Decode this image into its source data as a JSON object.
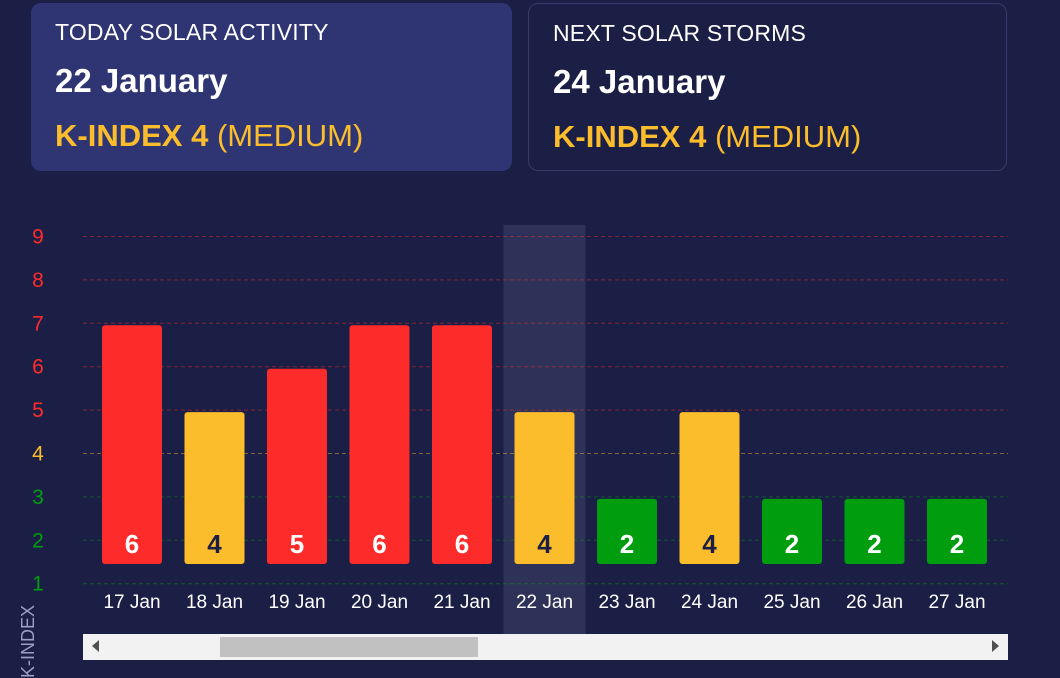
{
  "today": {
    "label": "TODAY SOLAR ACTIVITY",
    "date": "22 January",
    "k_prefix": "K-INDEX 4",
    "k_level": "(MEDIUM)"
  },
  "next": {
    "label": "NEXT SOLAR STORMS",
    "date": "24 January",
    "k_prefix": "K-INDEX 4",
    "k_level": "(MEDIUM)"
  },
  "colors": {
    "background": "#1c1f45",
    "card_active": "#2f3573",
    "high": "#fe2b2b",
    "medium": "#fbbd2c",
    "low": "#009e0f",
    "highlight": "#2e3258"
  },
  "chart_data": {
    "type": "bar",
    "categories": [
      "17 Jan",
      "18 Jan",
      "19 Jan",
      "20 Jan",
      "21 Jan",
      "22 Jan",
      "23 Jan",
      "24 Jan",
      "25 Jan",
      "26 Jan",
      "27 Jan"
    ],
    "values": [
      6,
      4,
      5,
      6,
      6,
      4,
      2,
      4,
      2,
      2,
      2
    ],
    "value_labels": [
      "6",
      "4",
      "5",
      "6",
      "6",
      "4",
      "2",
      "4",
      "2",
      "2",
      "2"
    ],
    "highlighted_category": "22 Jan",
    "ylabel": "K-INDEX",
    "ylim": [
      1,
      9
    ],
    "yticks": [
      "1",
      "2",
      "3",
      "4",
      "5",
      "6",
      "7",
      "8",
      "9"
    ],
    "grid": true,
    "tick_colors": {
      "1": "#009e0f",
      "2": "#009e0f",
      "3": "#009e0f",
      "4": "#fbbd2c",
      "5": "#fe2b2b",
      "6": "#fe2b2b",
      "7": "#fe2b2b",
      "8": "#fe2b2b",
      "9": "#fe2b2b"
    }
  }
}
